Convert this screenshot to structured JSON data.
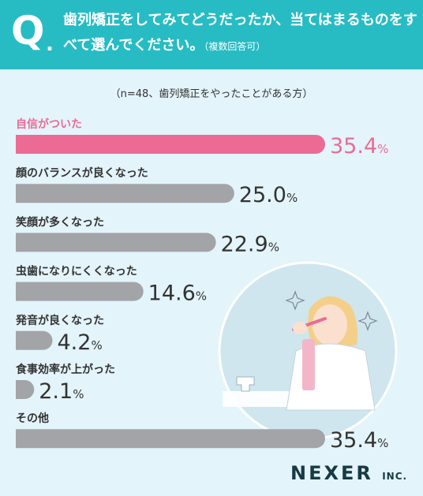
{
  "question": {
    "mark": "Q",
    "dot": ".",
    "text": "歯列矯正をしてみてどうだったか、当てはまるものをすべて選んでください。",
    "note": "（複数回答可）"
  },
  "sample_note": "（n=48、歯列矯正をやったことがある方）",
  "brand": {
    "name": "NEXER",
    "suffix": "INC."
  },
  "colors": {
    "header": "#27bcc4",
    "highlight": "#ec6b95",
    "bar": "#a3a4a8",
    "background": "#e3f4fa"
  },
  "chart_data": {
    "type": "bar",
    "orientation": "horizontal",
    "categories": [
      "自信がついた",
      "顔のバランスが良くなった",
      "笑顔が多くなった",
      "虫歯になりにくくなった",
      "発音が良くなった",
      "食事効率が上がった",
      "その他"
    ],
    "values": [
      35.4,
      25.0,
      22.9,
      14.6,
      4.2,
      2.1,
      35.4
    ],
    "value_labels": [
      "35.4",
      "25.0",
      "22.9",
      "14.6",
      "4.2",
      "2.1",
      "35.4"
    ],
    "unit": "%",
    "highlight_index": 0,
    "xlim": [
      0,
      35.4
    ]
  }
}
